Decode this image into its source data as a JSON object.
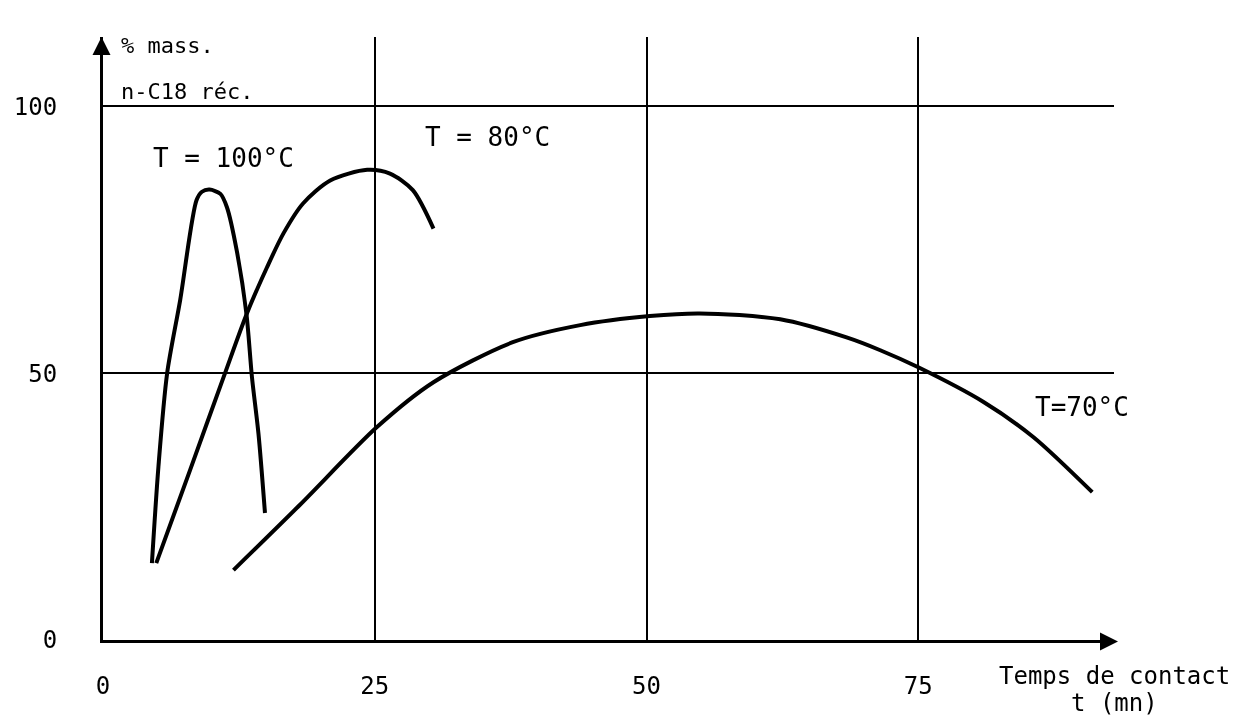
{
  "chart_data": {
    "type": "line",
    "xlabel": "Temps de contact\nt (mn)",
    "ylabel": "% mass.\nn-C18 réc.",
    "xlim": [
      0,
      93
    ],
    "ylim": [
      0,
      113
    ],
    "xticks": [
      0,
      25,
      50,
      75
    ],
    "yticks": [
      0,
      50,
      100
    ],
    "grid": true,
    "series": [
      {
        "name": "T = 100°C",
        "color": "#000000",
        "x": [
          4.5,
          5.1,
          5.9,
          7.1,
          8.6,
          9.1,
          9.8,
          10.8,
          11.4,
          12.3,
          13.2,
          13.7,
          14.3,
          14.9
        ],
        "values": [
          14.4,
          32.5,
          50,
          63.7,
          82.4,
          84.0,
          84.4,
          83.6,
          81.1,
          73,
          61,
          49.3,
          38.7,
          23.8
        ]
      },
      {
        "name": "T = 80°C",
        "color": "#000000",
        "x": [
          4.9,
          8.0,
          11.1,
          13.2,
          15.1,
          16.6,
          18.4,
          20.9,
          24.3,
          26.4,
          28.5,
          30.4
        ],
        "values": [
          14.4,
          31.8,
          49.3,
          61,
          69.9,
          76.2,
          81.8,
          86.1,
          88.1,
          87.4,
          84.3,
          77.1
        ]
      },
      {
        "name": "T=70°C",
        "color": "#000000",
        "x": [
          12.0,
          18.1,
          25.2,
          30.4,
          37.7,
          43.9,
          50.3,
          54.9,
          62.3,
          68.4,
          71.5,
          75,
          81,
          85.6,
          91
        ],
        "values": [
          13.1,
          25.3,
          39.9,
          48.3,
          55.8,
          59,
          60.7,
          61.2,
          60.1,
          56.7,
          54.3,
          51.1,
          44.6,
          38,
          27.7
        ]
      }
    ]
  }
}
